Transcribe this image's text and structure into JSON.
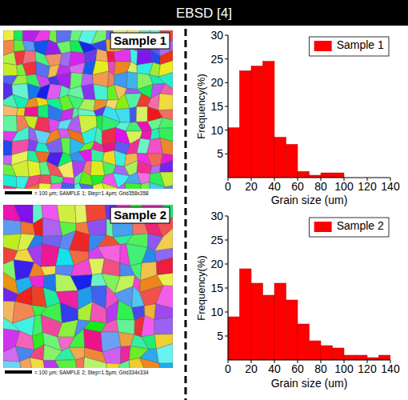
{
  "header": {
    "title": "EBSD [4]"
  },
  "maps": [
    {
      "label": "Sample 1",
      "scale_caption": "= 100 µm; SAMPLE 1; Step=1.4µm; Grid358x358"
    },
    {
      "label": "Sample 2",
      "scale_caption": "= 100 µm; SAMPLE 2; Step=1.5µm; Grid334x334"
    }
  ],
  "chart_data": [
    {
      "type": "histogram",
      "x_label": "Grain size (um)",
      "y_label": "Frequency(%)",
      "bins": [
        0,
        10,
        20,
        30,
        40,
        50,
        60,
        70,
        80,
        90,
        100
      ],
      "series": [
        {
          "name": "Sample 1",
          "color": "#ff0000",
          "values": [
            10.5,
            22.5,
            23.5,
            24.5,
            8.5,
            7,
            1.3,
            0.5,
            1,
            1
          ]
        }
      ],
      "xlim": [
        0,
        140
      ],
      "ylim": [
        0,
        30
      ],
      "xticks": [
        0,
        20,
        40,
        60,
        80,
        100,
        120,
        140
      ],
      "yticks": [
        5,
        10,
        15,
        20,
        25,
        30
      ],
      "legend": "upper right"
    },
    {
      "type": "histogram",
      "x_label": "Grain size (um)",
      "y_label": "Frequency(%)",
      "bins": [
        0,
        10,
        20,
        30,
        40,
        50,
        60,
        70,
        80,
        90,
        100,
        110,
        120,
        130,
        140
      ],
      "series": [
        {
          "name": "Sample 2",
          "color": "#ff0000",
          "values": [
            9,
            19,
            16,
            13.5,
            16,
            12.5,
            7.5,
            4,
            3,
            2.5,
            1,
            1,
            0.5,
            1
          ]
        }
      ],
      "xlim": [
        0,
        140
      ],
      "ylim": [
        0,
        30
      ],
      "xticks": [
        0,
        20,
        40,
        60,
        80,
        100,
        120,
        140
      ],
      "yticks": [
        5,
        10,
        15,
        20,
        25,
        30
      ],
      "legend": "upper right"
    }
  ]
}
